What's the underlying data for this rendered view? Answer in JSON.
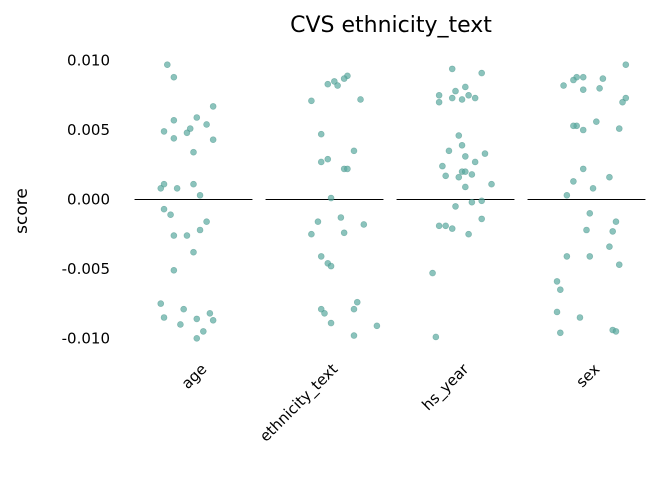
{
  "chart_data": {
    "type": "scatter",
    "title": "CVS ethnicity_text",
    "xlabel": "",
    "ylabel": "score",
    "ylim": [
      -0.0112,
      0.0104
    ],
    "yticks": [
      0.01,
      0.005,
      0.0,
      -0.005,
      -0.01
    ],
    "ytick_labels": [
      "0.010",
      "0.005",
      "0.000",
      "-0.005",
      "-0.010"
    ],
    "categories": [
      "age",
      "ethnicity_text",
      "hs_year",
      "sex"
    ],
    "point_color": "#5aa9a0",
    "reference_line_y": 0,
    "grid": false,
    "legend": "none",
    "series": [
      {
        "category": "age",
        "points": [
          {
            "x": -0.4,
            "y": 0.0097
          },
          {
            "x": -0.3,
            "y": 0.0088
          },
          {
            "x": 0.3,
            "y": 0.0067
          },
          {
            "x": 0.05,
            "y": 0.0059
          },
          {
            "x": -0.3,
            "y": 0.0057
          },
          {
            "x": 0.2,
            "y": 0.0054
          },
          {
            "x": -0.05,
            "y": 0.0051
          },
          {
            "x": -0.45,
            "y": 0.0049
          },
          {
            "x": -0.1,
            "y": 0.0048
          },
          {
            "x": -0.3,
            "y": 0.0044
          },
          {
            "x": 0.3,
            "y": 0.0043
          },
          {
            "x": 0.0,
            "y": 0.0034
          },
          {
            "x": -0.45,
            "y": 0.0011
          },
          {
            "x": 0.0,
            "y": 0.0011
          },
          {
            "x": -0.5,
            "y": 0.0008
          },
          {
            "x": -0.25,
            "y": 0.0008
          },
          {
            "x": 0.1,
            "y": 0.0003
          },
          {
            "x": -0.45,
            "y": -0.0007
          },
          {
            "x": -0.35,
            "y": -0.0011
          },
          {
            "x": 0.2,
            "y": -0.0016
          },
          {
            "x": 0.1,
            "y": -0.0022
          },
          {
            "x": -0.3,
            "y": -0.0026
          },
          {
            "x": -0.1,
            "y": -0.0026
          },
          {
            "x": 0.0,
            "y": -0.0038
          },
          {
            "x": -0.3,
            "y": -0.0051
          },
          {
            "x": -0.5,
            "y": -0.0075
          },
          {
            "x": -0.15,
            "y": -0.0079
          },
          {
            "x": 0.25,
            "y": -0.0082
          },
          {
            "x": -0.45,
            "y": -0.0085
          },
          {
            "x": 0.05,
            "y": -0.0086
          },
          {
            "x": 0.3,
            "y": -0.0087
          },
          {
            "x": -0.2,
            "y": -0.009
          },
          {
            "x": 0.15,
            "y": -0.0095
          },
          {
            "x": 0.05,
            "y": -0.01
          }
        ]
      },
      {
        "category": "ethnicity_text",
        "points": [
          {
            "x": 0.35,
            "y": 0.0089
          },
          {
            "x": 0.3,
            "y": 0.0087
          },
          {
            "x": 0.15,
            "y": 0.0085
          },
          {
            "x": 0.05,
            "y": 0.0083
          },
          {
            "x": 0.2,
            "y": 0.0082
          },
          {
            "x": 0.55,
            "y": 0.0072
          },
          {
            "x": -0.2,
            "y": 0.0071
          },
          {
            "x": -0.05,
            "y": 0.0047
          },
          {
            "x": 0.45,
            "y": 0.0035
          },
          {
            "x": 0.05,
            "y": 0.0029
          },
          {
            "x": -0.05,
            "y": 0.0027
          },
          {
            "x": 0.3,
            "y": 0.0022
          },
          {
            "x": 0.35,
            "y": 0.0022
          },
          {
            "x": 0.1,
            "y": 0.0001
          },
          {
            "x": 0.25,
            "y": -0.0013
          },
          {
            "x": -0.1,
            "y": -0.0016
          },
          {
            "x": 0.6,
            "y": -0.0018
          },
          {
            "x": 0.3,
            "y": -0.0024
          },
          {
            "x": -0.2,
            "y": -0.0025
          },
          {
            "x": -0.05,
            "y": -0.0041
          },
          {
            "x": 0.05,
            "y": -0.0046
          },
          {
            "x": 0.1,
            "y": -0.0048
          },
          {
            "x": 0.5,
            "y": -0.0074
          },
          {
            "x": 0.45,
            "y": -0.0079
          },
          {
            "x": -0.05,
            "y": -0.0079
          },
          {
            "x": 0.0,
            "y": -0.0082
          },
          {
            "x": 0.1,
            "y": -0.0089
          },
          {
            "x": 0.8,
            "y": -0.0091
          },
          {
            "x": 0.45,
            "y": -0.0098
          }
        ]
      },
      {
        "category": "hs_year",
        "points": [
          {
            "x": -0.05,
            "y": 0.0094
          },
          {
            "x": 0.4,
            "y": 0.0091
          },
          {
            "x": 0.15,
            "y": 0.0081
          },
          {
            "x": 0.0,
            "y": 0.0078
          },
          {
            "x": -0.25,
            "y": 0.0075
          },
          {
            "x": 0.2,
            "y": 0.0075
          },
          {
            "x": -0.05,
            "y": 0.0073
          },
          {
            "x": 0.3,
            "y": 0.0073
          },
          {
            "x": 0.1,
            "y": 0.0072
          },
          {
            "x": -0.25,
            "y": 0.007
          },
          {
            "x": 0.05,
            "y": 0.0046
          },
          {
            "x": 0.1,
            "y": 0.0039
          },
          {
            "x": -0.1,
            "y": 0.0035
          },
          {
            "x": 0.45,
            "y": 0.0033
          },
          {
            "x": 0.15,
            "y": 0.0031
          },
          {
            "x": 0.3,
            "y": 0.0027
          },
          {
            "x": -0.2,
            "y": 0.0024
          },
          {
            "x": 0.1,
            "y": 0.002
          },
          {
            "x": 0.15,
            "y": 0.002
          },
          {
            "x": 0.25,
            "y": 0.0018
          },
          {
            "x": -0.15,
            "y": 0.0017
          },
          {
            "x": 0.05,
            "y": 0.0016
          },
          {
            "x": 0.55,
            "y": 0.0011
          },
          {
            "x": 0.15,
            "y": 0.0009
          },
          {
            "x": 0.4,
            "y": -0.0001
          },
          {
            "x": 0.25,
            "y": -0.0002
          },
          {
            "x": 0.0,
            "y": -0.0005
          },
          {
            "x": 0.4,
            "y": -0.0014
          },
          {
            "x": -0.25,
            "y": -0.0019
          },
          {
            "x": -0.15,
            "y": -0.0019
          },
          {
            "x": -0.05,
            "y": -0.0021
          },
          {
            "x": 0.2,
            "y": -0.0025
          },
          {
            "x": -0.35,
            "y": -0.0053
          },
          {
            "x": -0.3,
            "y": -0.0099
          }
        ]
      },
      {
        "category": "sex",
        "points": [
          {
            "x": 0.6,
            "y": 0.0097
          },
          {
            "x": -0.15,
            "y": 0.0088
          },
          {
            "x": -0.05,
            "y": 0.0088
          },
          {
            "x": 0.25,
            "y": 0.0087
          },
          {
            "x": -0.2,
            "y": 0.0086
          },
          {
            "x": -0.35,
            "y": 0.0082
          },
          {
            "x": 0.2,
            "y": 0.008
          },
          {
            "x": -0.05,
            "y": 0.0079
          },
          {
            "x": 0.6,
            "y": 0.0073
          },
          {
            "x": 0.55,
            "y": 0.007
          },
          {
            "x": 0.15,
            "y": 0.0056
          },
          {
            "x": -0.15,
            "y": 0.0053
          },
          {
            "x": -0.2,
            "y": 0.0053
          },
          {
            "x": 0.5,
            "y": 0.0051
          },
          {
            "x": -0.05,
            "y": 0.005
          },
          {
            "x": 0.35,
            "y": 0.0016
          },
          {
            "x": -0.05,
            "y": 0.0022
          },
          {
            "x": -0.2,
            "y": 0.0013
          },
          {
            "x": 0.1,
            "y": 0.0008
          },
          {
            "x": -0.3,
            "y": 0.0003
          },
          {
            "x": 0.05,
            "y": -0.001
          },
          {
            "x": 0.45,
            "y": -0.0016
          },
          {
            "x": 0.0,
            "y": -0.0022
          },
          {
            "x": 0.4,
            "y": -0.0023
          },
          {
            "x": 0.35,
            "y": -0.0034
          },
          {
            "x": -0.3,
            "y": -0.0041
          },
          {
            "x": 0.05,
            "y": -0.0041
          },
          {
            "x": 0.5,
            "y": -0.0047
          },
          {
            "x": -0.45,
            "y": -0.0059
          },
          {
            "x": -0.4,
            "y": -0.0065
          },
          {
            "x": -0.45,
            "y": -0.0081
          },
          {
            "x": -0.1,
            "y": -0.0085
          },
          {
            "x": 0.4,
            "y": -0.0094
          },
          {
            "x": 0.45,
            "y": -0.0095
          },
          {
            "x": -0.4,
            "y": -0.0096
          }
        ]
      }
    ]
  }
}
